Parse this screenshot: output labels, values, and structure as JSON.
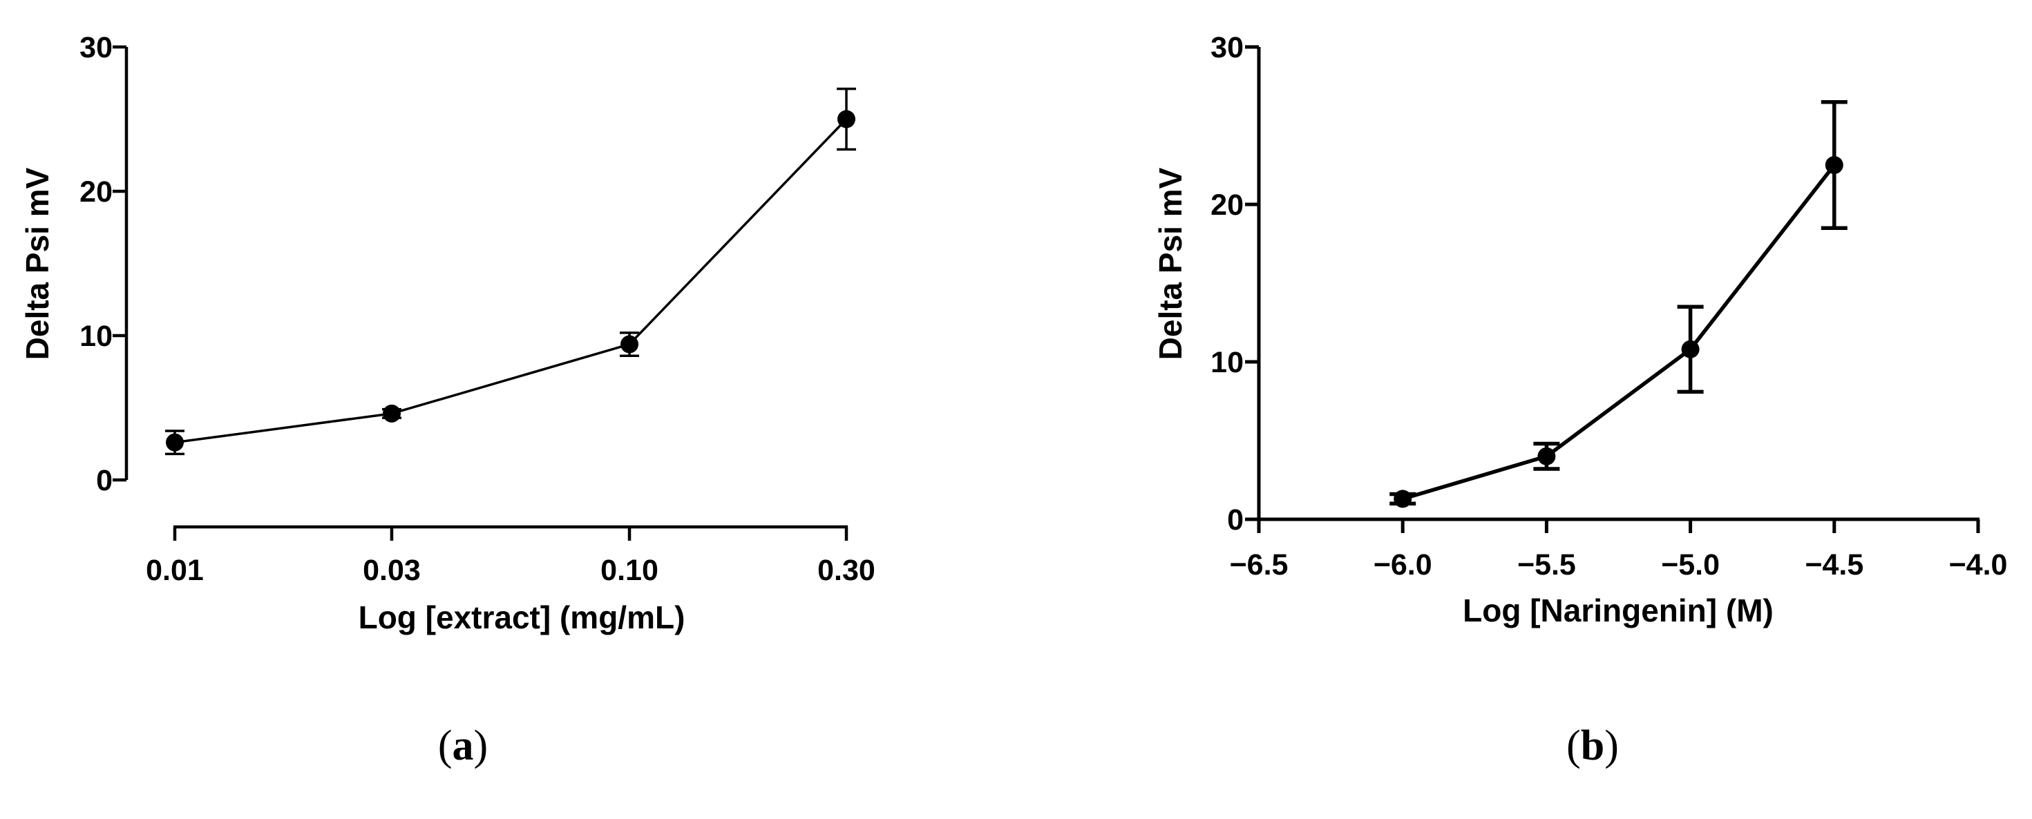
{
  "chart_data": [
    {
      "type": "line",
      "panel_label": "a",
      "xlabel": "Log [extract] (mg/mL)",
      "ylabel": "Delta Psi mV",
      "x_scale": "log",
      "x_ticks": [
        0.01,
        0.03,
        0.1,
        0.3
      ],
      "x_tick_labels": [
        "0.01",
        "0.03",
        "0.10",
        "0.30"
      ],
      "y_ticks": [
        0,
        10,
        20,
        30
      ],
      "y_tick_labels": [
        "0",
        "10",
        "20",
        "30"
      ],
      "ylim": [
        0,
        30
      ],
      "grid": false,
      "series": [
        {
          "x": [
            0.01,
            0.03,
            0.1,
            0.3
          ],
          "values": [
            2.6,
            4.6,
            9.4,
            25.0
          ],
          "error": [
            0.8,
            0.3,
            0.8,
            2.1
          ],
          "color": "#000000"
        }
      ]
    },
    {
      "type": "line",
      "panel_label": "b",
      "xlabel": "Log [Naringenin] (M)",
      "ylabel": "Delta Psi mV",
      "x_scale": "linear",
      "xlim": [
        -6.5,
        -4.0
      ],
      "x_ticks": [
        -6.5,
        -6.0,
        -5.5,
        -5.0,
        -4.5,
        -4.0
      ],
      "x_tick_labels": [
        "−6.5",
        "−6.0",
        "−5.5",
        "−5.0",
        "−4.5",
        "−4.0"
      ],
      "y_ticks": [
        0,
        10,
        20,
        30
      ],
      "y_tick_labels": [
        "0",
        "10",
        "20",
        "30"
      ],
      "ylim": [
        0,
        30
      ],
      "grid": false,
      "series": [
        {
          "x": [
            -6.0,
            -5.5,
            -5.0,
            -4.5
          ],
          "values": [
            1.3,
            4.0,
            10.8,
            22.5
          ],
          "error": [
            0.3,
            0.8,
            2.7,
            4.0
          ],
          "color": "#000000"
        }
      ]
    }
  ]
}
